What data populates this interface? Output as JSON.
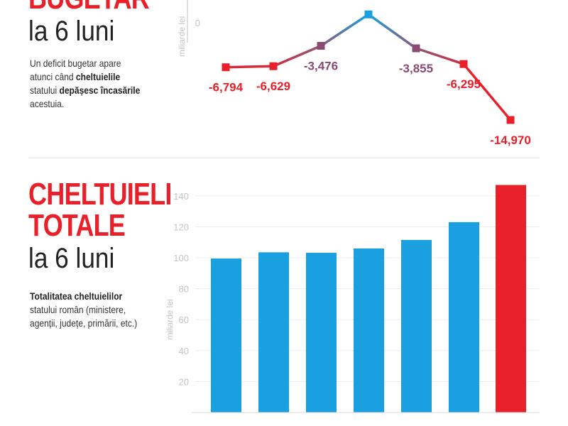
{
  "deficit": {
    "title": "BUGETAR",
    "subtitle": "la 6 luni",
    "description": {
      "part1": "Un deficit bugetar apare atunci când ",
      "bold1": "cheltuielile",
      "part2": " statului ",
      "bold2": "depășesc încasările",
      "part3": " acestuia."
    }
  },
  "spending": {
    "title_line1": "CHELTUIELI",
    "title_line2": "TOTALE",
    "subtitle": "la 6 luni",
    "description": {
      "bold1": "Totalitatea cheltuielilor",
      "part1": " statului român (ministere, agenții, județe, primării, etc.)"
    }
  },
  "colors": {
    "red": "#e8202a",
    "blue": "#1aa0e0",
    "purple": "#8a4a72",
    "axis": "#c4c4c4"
  },
  "chart_data": [
    {
      "type": "line",
      "ylabel": "miliarde lei",
      "y_ticks": [
        "0"
      ],
      "y_tick_values": [
        0
      ],
      "ylim": [
        -16,
        2.2
      ],
      "series": [
        {
          "values": [
            -6.794,
            -6.629,
            -3.476,
            1.4,
            -3.855,
            -6.295,
            -14.97
          ],
          "labels": [
            "-6,794",
            "-6,629",
            "-3,476",
            "",
            "-3,855",
            "-6,295",
            "-14,970"
          ]
        }
      ]
    },
    {
      "type": "bar",
      "ylabel": "miliarde lei",
      "y_ticks": [
        "20",
        "40",
        "60",
        "80",
        "100",
        "120",
        "140"
      ],
      "y_tick_values": [
        20,
        40,
        60,
        80,
        100,
        120,
        140
      ],
      "ylim": [
        0,
        150
      ],
      "values": [
        99.5,
        103.5,
        103.2,
        106,
        111.5,
        123,
        147
      ],
      "highlight_last": true
    }
  ]
}
